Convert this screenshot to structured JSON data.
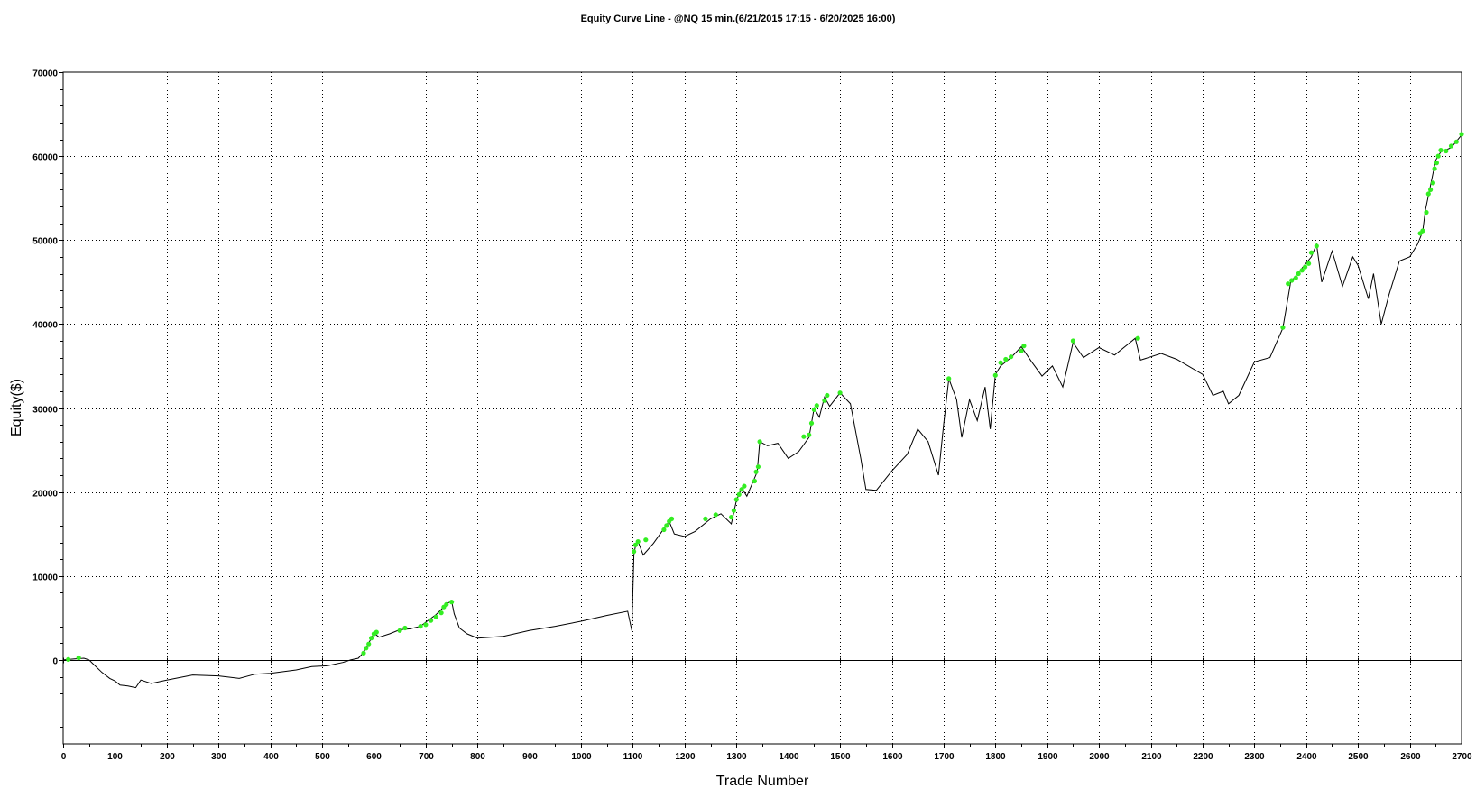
{
  "chart_data": {
    "type": "line",
    "title": "Equity Curve Line - @NQ 15 min.(6/21/2015 17:15 - 6/20/2025 16:00)",
    "xlabel": "Trade Number",
    "ylabel": "Equity($)",
    "xlim": [
      0,
      2700
    ],
    "ylim": [
      -10000,
      70000
    ],
    "x_ticks": [
      0,
      100,
      200,
      300,
      400,
      500,
      600,
      700,
      800,
      900,
      1000,
      1100,
      1200,
      1300,
      1400,
      1500,
      1600,
      1700,
      1800,
      1900,
      2000,
      2100,
      2200,
      2300,
      2400,
      2500,
      2600,
      2700
    ],
    "y_ticks": [
      0,
      10000,
      20000,
      30000,
      40000,
      50000,
      60000,
      70000
    ],
    "grid": true,
    "line_color": "#000000",
    "new_high_marker_color": "#33ee22",
    "series": [
      {
        "points": [
          [
            0,
            0
          ],
          [
            20,
            100
          ],
          [
            40,
            200
          ],
          [
            50,
            0
          ],
          [
            60,
            -600
          ],
          [
            75,
            -1500
          ],
          [
            90,
            -2200
          ],
          [
            100,
            -2500
          ],
          [
            110,
            -3000
          ],
          [
            125,
            -3100
          ],
          [
            140,
            -3300
          ],
          [
            150,
            -2400
          ],
          [
            170,
            -2800
          ],
          [
            200,
            -2400
          ],
          [
            250,
            -1800
          ],
          [
            300,
            -1900
          ],
          [
            340,
            -2200
          ],
          [
            370,
            -1700
          ],
          [
            400,
            -1600
          ],
          [
            450,
            -1200
          ],
          [
            480,
            -800
          ],
          [
            510,
            -700
          ],
          [
            540,
            -300
          ],
          [
            555,
            0
          ],
          [
            570,
            200
          ],
          [
            580,
            900
          ],
          [
            590,
            2000
          ],
          [
            600,
            3200
          ],
          [
            610,
            2700
          ],
          [
            630,
            3100
          ],
          [
            650,
            3600
          ],
          [
            670,
            3700
          ],
          [
            690,
            4000
          ],
          [
            700,
            4500
          ],
          [
            720,
            5400
          ],
          [
            730,
            6000
          ],
          [
            740,
            6700
          ],
          [
            750,
            7000
          ],
          [
            755,
            5500
          ],
          [
            765,
            3800
          ],
          [
            780,
            3100
          ],
          [
            800,
            2600
          ],
          [
            850,
            2800
          ],
          [
            900,
            3500
          ],
          [
            950,
            4000
          ],
          [
            1000,
            4600
          ],
          [
            1050,
            5300
          ],
          [
            1090,
            5800
          ],
          [
            1098,
            3500
          ],
          [
            1102,
            12500
          ],
          [
            1105,
            13600
          ],
          [
            1110,
            14100
          ],
          [
            1120,
            12500
          ],
          [
            1140,
            13900
          ],
          [
            1170,
            16500
          ],
          [
            1180,
            15000
          ],
          [
            1200,
            14700
          ],
          [
            1220,
            15300
          ],
          [
            1250,
            16800
          ],
          [
            1270,
            17400
          ],
          [
            1290,
            16200
          ],
          [
            1300,
            19000
          ],
          [
            1310,
            20500
          ],
          [
            1320,
            19500
          ],
          [
            1340,
            22400
          ],
          [
            1345,
            26000
          ],
          [
            1360,
            25500
          ],
          [
            1380,
            25800
          ],
          [
            1400,
            24000
          ],
          [
            1420,
            24800
          ],
          [
            1440,
            26500
          ],
          [
            1450,
            30000
          ],
          [
            1460,
            28900
          ],
          [
            1470,
            31300
          ],
          [
            1480,
            30200
          ],
          [
            1500,
            31800
          ],
          [
            1520,
            30500
          ],
          [
            1540,
            24000
          ],
          [
            1550,
            20300
          ],
          [
            1570,
            20200
          ],
          [
            1600,
            22500
          ],
          [
            1630,
            24500
          ],
          [
            1650,
            27500
          ],
          [
            1670,
            26000
          ],
          [
            1690,
            22000
          ],
          [
            1700,
            28000
          ],
          [
            1710,
            33500
          ],
          [
            1725,
            31000
          ],
          [
            1735,
            26500
          ],
          [
            1750,
            31000
          ],
          [
            1765,
            28500
          ],
          [
            1780,
            32500
          ],
          [
            1790,
            27500
          ],
          [
            1800,
            34000
          ],
          [
            1810,
            35000
          ],
          [
            1830,
            36000
          ],
          [
            1850,
            37300
          ],
          [
            1870,
            35500
          ],
          [
            1890,
            33800
          ],
          [
            1910,
            35000
          ],
          [
            1930,
            32500
          ],
          [
            1950,
            37800
          ],
          [
            1970,
            36000
          ],
          [
            2000,
            37200
          ],
          [
            2030,
            36300
          ],
          [
            2070,
            38300
          ],
          [
            2080,
            35700
          ],
          [
            2120,
            36500
          ],
          [
            2150,
            35800
          ],
          [
            2200,
            34000
          ],
          [
            2220,
            31500
          ],
          [
            2240,
            32000
          ],
          [
            2250,
            30500
          ],
          [
            2270,
            31500
          ],
          [
            2300,
            35500
          ],
          [
            2330,
            36000
          ],
          [
            2355,
            39500
          ],
          [
            2370,
            45000
          ],
          [
            2390,
            46500
          ],
          [
            2410,
            48000
          ],
          [
            2420,
            49500
          ],
          [
            2430,
            45000
          ],
          [
            2450,
            48700
          ],
          [
            2470,
            44500
          ],
          [
            2490,
            48000
          ],
          [
            2500,
            47000
          ],
          [
            2520,
            43000
          ],
          [
            2530,
            46000
          ],
          [
            2545,
            40000
          ],
          [
            2560,
            43500
          ],
          [
            2580,
            47500
          ],
          [
            2600,
            48000
          ],
          [
            2615,
            49500
          ],
          [
            2625,
            51000
          ],
          [
            2630,
            53500
          ],
          [
            2640,
            56500
          ],
          [
            2650,
            59500
          ],
          [
            2660,
            60500
          ],
          [
            2680,
            61000
          ],
          [
            2700,
            62500
          ]
        ]
      }
    ],
    "new_high_points": [
      [
        10,
        50
      ],
      [
        30,
        250
      ],
      [
        580,
        800
      ],
      [
        585,
        1400
      ],
      [
        590,
        1900
      ],
      [
        595,
        2600
      ],
      [
        600,
        3100
      ],
      [
        605,
        3300
      ],
      [
        650,
        3500
      ],
      [
        660,
        3800
      ],
      [
        690,
        4000
      ],
      [
        700,
        4200
      ],
      [
        710,
        4700
      ],
      [
        720,
        5100
      ],
      [
        730,
        5600
      ],
      [
        735,
        6300
      ],
      [
        740,
        6600
      ],
      [
        750,
        6900
      ],
      [
        1102,
        12900
      ],
      [
        1105,
        13700
      ],
      [
        1110,
        14100
      ],
      [
        1125,
        14300
      ],
      [
        1160,
        15500
      ],
      [
        1165,
        16000
      ],
      [
        1170,
        16500
      ],
      [
        1175,
        16800
      ],
      [
        1240,
        16800
      ],
      [
        1260,
        17300
      ],
      [
        1290,
        17000
      ],
      [
        1295,
        17800
      ],
      [
        1300,
        19100
      ],
      [
        1305,
        19700
      ],
      [
        1310,
        20300
      ],
      [
        1315,
        20700
      ],
      [
        1335,
        21300
      ],
      [
        1338,
        22400
      ],
      [
        1342,
        23000
      ],
      [
        1345,
        26000
      ],
      [
        1430,
        26600
      ],
      [
        1440,
        26800
      ],
      [
        1445,
        28200
      ],
      [
        1450,
        29800
      ],
      [
        1455,
        30300
      ],
      [
        1470,
        30900
      ],
      [
        1475,
        31500
      ],
      [
        1500,
        31800
      ],
      [
        1710,
        33500
      ],
      [
        1800,
        33900
      ],
      [
        1810,
        35400
      ],
      [
        1820,
        35800
      ],
      [
        1830,
        36100
      ],
      [
        1850,
        36800
      ],
      [
        1855,
        37400
      ],
      [
        1950,
        38000
      ],
      [
        2075,
        38300
      ],
      [
        2355,
        39600
      ],
      [
        2365,
        44800
      ],
      [
        2372,
        45200
      ],
      [
        2380,
        45500
      ],
      [
        2385,
        46000
      ],
      [
        2392,
        46400
      ],
      [
        2398,
        46800
      ],
      [
        2405,
        47200
      ],
      [
        2410,
        48500
      ],
      [
        2420,
        49300
      ],
      [
        2620,
        50800
      ],
      [
        2625,
        51100
      ],
      [
        2632,
        53300
      ],
      [
        2636,
        55500
      ],
      [
        2640,
        56000
      ],
      [
        2645,
        56800
      ],
      [
        2648,
        58500
      ],
      [
        2652,
        59200
      ],
      [
        2655,
        60000
      ],
      [
        2660,
        60700
      ],
      [
        2670,
        60600
      ],
      [
        2680,
        61200
      ],
      [
        2690,
        61700
      ],
      [
        2700,
        62600
      ]
    ]
  }
}
